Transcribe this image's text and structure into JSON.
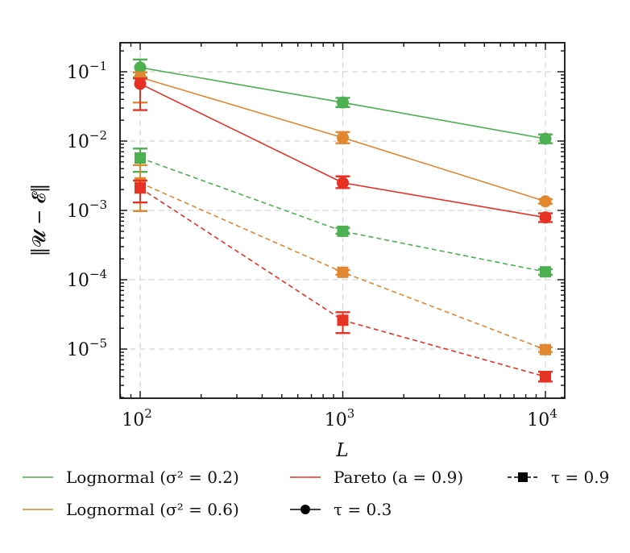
{
  "chart_data": {
    "type": "line",
    "title": "",
    "xlabel": "L",
    "ylabel": "‖𝓤 − 𝓔‖",
    "xscale": "log",
    "yscale": "log",
    "xlim": [
      80,
      12500
    ],
    "ylim": [
      1.9e-06,
      0.27
    ],
    "grid": true,
    "x_ticks": [
      {
        "value": 100,
        "base": "10",
        "exp": "2"
      },
      {
        "value": 1000,
        "base": "10",
        "exp": "3"
      },
      {
        "value": 10000,
        "base": "10",
        "exp": "4"
      }
    ],
    "y_ticks": [
      {
        "value": 0.1,
        "base": "10",
        "exp": "−1"
      },
      {
        "value": 0.01,
        "base": "10",
        "exp": "−2"
      },
      {
        "value": 0.001,
        "base": "10",
        "exp": "−3"
      },
      {
        "value": 0.0001,
        "base": "10",
        "exp": "−4"
      },
      {
        "value": 1e-05,
        "base": "10",
        "exp": "−5"
      }
    ],
    "x": [
      100,
      1000,
      10000
    ],
    "series": [
      {
        "name": "Lognormal (σ² = 0.2), τ = 0.3",
        "distribution": "Lognormal (σ² = 0.2)",
        "tau": "0.3",
        "color": "#4caf50",
        "marker": "circle",
        "linestyle": "solid",
        "values": [
          0.115,
          0.036,
          0.0108
        ],
        "err_low": [
          0.083,
          0.031,
          0.0093
        ],
        "err_high": [
          0.15,
          0.042,
          0.0125
        ]
      },
      {
        "name": "Lognormal (σ² = 0.6), τ = 0.3",
        "distribution": "Lognormal (σ² = 0.6)",
        "tau": "0.3",
        "color": "#e0872f",
        "marker": "circle",
        "linestyle": "solid",
        "values": [
          0.083,
          0.0112,
          0.00135
        ],
        "err_low": [
          0.036,
          0.0093,
          0.00125
        ],
        "err_high": [
          0.098,
          0.0135,
          0.00145
        ]
      },
      {
        "name": "Pareto (a = 0.9), τ = 0.3",
        "distribution": "Pareto (a = 0.9)",
        "tau": "0.3",
        "color": "#e53225",
        "marker": "circle",
        "linestyle": "solid",
        "values": [
          0.067,
          0.0025,
          0.00079
        ],
        "err_low": [
          0.028,
          0.0021,
          0.00068
        ],
        "err_high": [
          0.08,
          0.0031,
          0.00091
        ]
      },
      {
        "name": "Lognormal (σ² = 0.2), τ = 0.9",
        "distribution": "Lognormal (σ² = 0.2)",
        "tau": "0.9",
        "color": "#4caf50",
        "marker": "square",
        "linestyle": "dashed",
        "values": [
          0.0057,
          0.0005,
          0.00013
        ],
        "err_low": [
          0.0036,
          0.00046,
          0.000118
        ],
        "err_high": [
          0.0078,
          0.00056,
          0.000142
        ]
      },
      {
        "name": "Lognormal (σ² = 0.6), τ = 0.9",
        "distribution": "Lognormal (σ² = 0.6)",
        "tau": "0.9",
        "color": "#e0872f",
        "marker": "square",
        "linestyle": "dashed",
        "values": [
          0.0025,
          0.000128,
          9.8e-06
        ],
        "err_low": [
          0.00098,
          0.000118,
          9.1e-06
        ],
        "err_high": [
          0.0045,
          0.000138,
          1.06e-05
        ]
      },
      {
        "name": "Pareto (a = 0.9), τ = 0.9",
        "distribution": "Pareto (a = 0.9)",
        "tau": "0.9",
        "color": "#e53225",
        "marker": "square",
        "linestyle": "dashed",
        "values": [
          0.0021,
          2.6e-05,
          4e-06
        ],
        "err_low": [
          0.0013,
          1.7e-05,
          3.4e-06
        ],
        "err_high": [
          0.0027,
          3.4e-05,
          4.7e-06
        ]
      }
    ],
    "legend": {
      "placement": "bottom",
      "entries": [
        {
          "label": "Lognormal (σ² = 0.2)",
          "kind": "line",
          "color": "#4caf50"
        },
        {
          "label": "Pareto (a = 0.9)",
          "kind": "line",
          "color": "#e53225"
        },
        {
          "label": "τ = 0.9",
          "kind": "marker-dashed-square",
          "color": "#000000"
        },
        {
          "label": "Lognormal (σ² = 0.6)",
          "kind": "line",
          "color": "#e0872f"
        },
        {
          "label": "τ = 0.3",
          "kind": "marker-solid-circle",
          "color": "#000000"
        }
      ]
    }
  }
}
